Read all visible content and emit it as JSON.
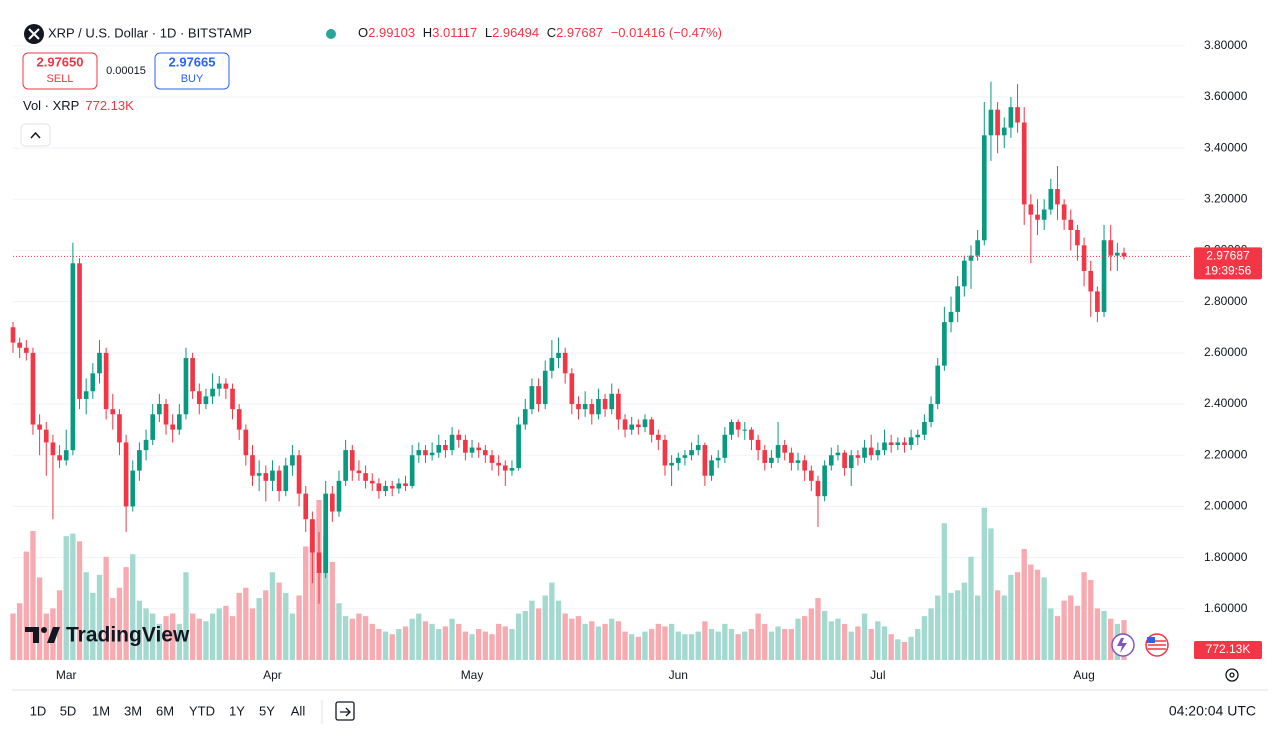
{
  "header": {
    "symbol": "XRP / U.S. Dollar · 1D · BITSTAMP",
    "o_label": "O",
    "h_label": "H",
    "l_label": "L",
    "c_label": "C",
    "change": "−0.01416 (−0.47%)",
    "sell_price": "2.97650",
    "sell": "SELL",
    "spread": "0.00015",
    "buy_price": "2.97665",
    "buy": "BUY",
    "vol_label": "Vol · XRP"
  },
  "chart_data": {
    "type": "candlestick",
    "up_color": "#089981",
    "down_color": "#f23645",
    "volume_up_color": "#a3d9cf",
    "volume_down_color": "#f7aab0",
    "grid": true,
    "ylim": [
      1.4,
      3.92
    ],
    "yticks": [
      {
        "value": 1.6,
        "label": "1.60000"
      },
      {
        "value": 1.8,
        "label": "1.80000"
      },
      {
        "value": 2.0,
        "label": "2.00000"
      },
      {
        "value": 2.2,
        "label": "2.20000"
      },
      {
        "value": 2.4,
        "label": "2.40000"
      },
      {
        "value": 2.6,
        "label": "2.60000"
      },
      {
        "value": 2.8,
        "label": "2.80000"
      },
      {
        "value": 3.0,
        "label": "3.00000"
      },
      {
        "value": 3.2,
        "label": "3.20000"
      },
      {
        "value": 3.4,
        "label": "3.40000"
      },
      {
        "value": 3.6,
        "label": "3.60000"
      },
      {
        "value": 3.8,
        "label": "3.80000"
      }
    ],
    "categories": [
      null,
      null,
      null,
      null,
      null,
      null,
      null,
      null,
      "Mar",
      null,
      null,
      null,
      null,
      null,
      null,
      null,
      null,
      null,
      null,
      null,
      null,
      null,
      null,
      null,
      null,
      null,
      null,
      null,
      null,
      null,
      null,
      null,
      null,
      null,
      null,
      null,
      null,
      null,
      null,
      "Apr",
      null,
      null,
      null,
      null,
      null,
      null,
      null,
      null,
      null,
      null,
      null,
      null,
      null,
      null,
      null,
      null,
      null,
      null,
      null,
      null,
      null,
      null,
      null,
      null,
      null,
      null,
      null,
      null,
      null,
      "May",
      null,
      null,
      null,
      null,
      null,
      null,
      null,
      null,
      null,
      null,
      null,
      null,
      null,
      null,
      null,
      null,
      null,
      null,
      null,
      null,
      null,
      null,
      null,
      null,
      null,
      null,
      null,
      null,
      null,
      null,
      "Jun",
      null,
      null,
      null,
      null,
      null,
      null,
      null,
      null,
      null,
      null,
      null,
      null,
      null,
      null,
      null,
      null,
      null,
      null,
      null,
      null,
      null,
      null,
      null,
      null,
      null,
      null,
      null,
      null,
      null,
      "Jul",
      null,
      null,
      null,
      null,
      null,
      null,
      null,
      null,
      null,
      null,
      null,
      null,
      null,
      null,
      null,
      null,
      null,
      null,
      null,
      null,
      null,
      null,
      null,
      null,
      null,
      null,
      null,
      null,
      null,
      null,
      "Aug",
      null,
      null,
      null,
      null,
      null,
      null
    ],
    "candles": [
      [
        2.7,
        2.72,
        2.6,
        2.64
      ],
      [
        2.64,
        2.66,
        2.58,
        2.62
      ],
      [
        2.62,
        2.65,
        2.57,
        2.6
      ],
      [
        2.6,
        2.62,
        2.28,
        2.32
      ],
      [
        2.32,
        2.36,
        2.2,
        2.3
      ],
      [
        2.3,
        2.33,
        2.12,
        2.25
      ],
      [
        2.25,
        2.28,
        1.95,
        2.2
      ],
      [
        2.2,
        2.24,
        2.15,
        2.18
      ],
      [
        2.18,
        2.3,
        2.16,
        2.22
      ],
      [
        2.22,
        3.03,
        2.2,
        2.95
      ],
      [
        2.95,
        2.97,
        2.38,
        2.42
      ],
      [
        2.42,
        2.5,
        2.36,
        2.45
      ],
      [
        2.45,
        2.56,
        2.42,
        2.52
      ],
      [
        2.52,
        2.65,
        2.48,
        2.6
      ],
      [
        2.6,
        2.62,
        2.34,
        2.38
      ],
      [
        2.38,
        2.44,
        2.3,
        2.36
      ],
      [
        2.36,
        2.38,
        2.2,
        2.25
      ],
      [
        2.25,
        2.28,
        1.9,
        2.0
      ],
      [
        2.0,
        2.18,
        1.98,
        2.14
      ],
      [
        2.14,
        2.25,
        2.1,
        2.22
      ],
      [
        2.22,
        2.3,
        2.18,
        2.26
      ],
      [
        2.26,
        2.4,
        2.24,
        2.36
      ],
      [
        2.36,
        2.44,
        2.33,
        2.4
      ],
      [
        2.4,
        2.42,
        2.28,
        2.32
      ],
      [
        2.32,
        2.36,
        2.25,
        2.3
      ],
      [
        2.3,
        2.4,
        2.28,
        2.36
      ],
      [
        2.36,
        2.62,
        2.34,
        2.58
      ],
      [
        2.58,
        2.6,
        2.42,
        2.45
      ],
      [
        2.45,
        2.48,
        2.36,
        2.4
      ],
      [
        2.4,
        2.46,
        2.38,
        2.43
      ],
      [
        2.43,
        2.52,
        2.4,
        2.46
      ],
      [
        2.46,
        2.51,
        2.43,
        2.48
      ],
      [
        2.48,
        2.5,
        2.42,
        2.46
      ],
      [
        2.46,
        2.48,
        2.34,
        2.38
      ],
      [
        2.38,
        2.4,
        2.26,
        2.3
      ],
      [
        2.3,
        2.32,
        2.16,
        2.2
      ],
      [
        2.2,
        2.24,
        2.08,
        2.12
      ],
      [
        2.12,
        2.18,
        2.06,
        2.13
      ],
      [
        2.13,
        2.16,
        2.02,
        2.1
      ],
      [
        2.1,
        2.18,
        2.06,
        2.14
      ],
      [
        2.14,
        2.16,
        2.02,
        2.06
      ],
      [
        2.06,
        2.19,
        2.04,
        2.16
      ],
      [
        2.16,
        2.24,
        2.12,
        2.2
      ],
      [
        2.2,
        2.22,
        2.0,
        2.05
      ],
      [
        2.05,
        2.08,
        1.9,
        1.95
      ],
      [
        1.95,
        1.98,
        1.7,
        1.82
      ],
      [
        1.82,
        1.9,
        1.62,
        1.74
      ],
      [
        1.74,
        2.1,
        1.72,
        2.05
      ],
      [
        2.05,
        2.08,
        1.94,
        1.98
      ],
      [
        1.98,
        2.14,
        1.96,
        2.1
      ],
      [
        2.1,
        2.26,
        2.08,
        2.22
      ],
      [
        2.22,
        2.24,
        2.1,
        2.14
      ],
      [
        2.14,
        2.18,
        2.1,
        2.13
      ],
      [
        2.13,
        2.16,
        2.07,
        2.1
      ],
      [
        2.1,
        2.13,
        2.06,
        2.09
      ],
      [
        2.09,
        2.11,
        2.03,
        2.06
      ],
      [
        2.06,
        2.1,
        2.04,
        2.08
      ],
      [
        2.08,
        2.1,
        2.04,
        2.07
      ],
      [
        2.07,
        2.11,
        2.05,
        2.09
      ],
      [
        2.09,
        2.12,
        2.06,
        2.08
      ],
      [
        2.08,
        2.24,
        2.07,
        2.2
      ],
      [
        2.2,
        2.25,
        2.17,
        2.22
      ],
      [
        2.22,
        2.24,
        2.17,
        2.2
      ],
      [
        2.2,
        2.25,
        2.18,
        2.21
      ],
      [
        2.21,
        2.28,
        2.19,
        2.24
      ],
      [
        2.24,
        2.26,
        2.19,
        2.22
      ],
      [
        2.22,
        2.31,
        2.2,
        2.28
      ],
      [
        2.28,
        2.3,
        2.23,
        2.26
      ],
      [
        2.26,
        2.28,
        2.18,
        2.21
      ],
      [
        2.21,
        2.26,
        2.19,
        2.23
      ],
      [
        2.23,
        2.25,
        2.19,
        2.22
      ],
      [
        2.22,
        2.24,
        2.17,
        2.2
      ],
      [
        2.2,
        2.22,
        2.14,
        2.17
      ],
      [
        2.17,
        2.2,
        2.12,
        2.16
      ],
      [
        2.16,
        2.18,
        2.08,
        2.14
      ],
      [
        2.14,
        2.18,
        2.12,
        2.15
      ],
      [
        2.15,
        2.35,
        2.14,
        2.32
      ],
      [
        2.32,
        2.42,
        2.3,
        2.38
      ],
      [
        2.38,
        2.5,
        2.36,
        2.47
      ],
      [
        2.47,
        2.5,
        2.37,
        2.4
      ],
      [
        2.4,
        2.57,
        2.38,
        2.53
      ],
      [
        2.53,
        2.65,
        2.5,
        2.58
      ],
      [
        2.58,
        2.66,
        2.54,
        2.6
      ],
      [
        2.6,
        2.62,
        2.48,
        2.52
      ],
      [
        2.52,
        2.54,
        2.36,
        2.4
      ],
      [
        2.4,
        2.43,
        2.34,
        2.38
      ],
      [
        2.38,
        2.45,
        2.35,
        2.4
      ],
      [
        2.4,
        2.42,
        2.32,
        2.36
      ],
      [
        2.36,
        2.46,
        2.34,
        2.42
      ],
      [
        2.42,
        2.44,
        2.35,
        2.38
      ],
      [
        2.38,
        2.48,
        2.36,
        2.44
      ],
      [
        2.44,
        2.46,
        2.3,
        2.34
      ],
      [
        2.34,
        2.36,
        2.27,
        2.3
      ],
      [
        2.3,
        2.35,
        2.28,
        2.32
      ],
      [
        2.32,
        2.34,
        2.28,
        2.31
      ],
      [
        2.31,
        2.36,
        2.29,
        2.34
      ],
      [
        2.34,
        2.35,
        2.25,
        2.28
      ],
      [
        2.28,
        2.3,
        2.22,
        2.26
      ],
      [
        2.26,
        2.28,
        2.12,
        2.16
      ],
      [
        2.16,
        2.2,
        2.08,
        2.17
      ],
      [
        2.17,
        2.21,
        2.14,
        2.19
      ],
      [
        2.19,
        2.22,
        2.16,
        2.2
      ],
      [
        2.2,
        2.25,
        2.18,
        2.22
      ],
      [
        2.22,
        2.28,
        2.2,
        2.24
      ],
      [
        2.24,
        2.25,
        2.08,
        2.12
      ],
      [
        2.12,
        2.2,
        2.1,
        2.18
      ],
      [
        2.18,
        2.22,
        2.15,
        2.19
      ],
      [
        2.19,
        2.31,
        2.17,
        2.28
      ],
      [
        2.28,
        2.34,
        2.26,
        2.33
      ],
      [
        2.33,
        2.34,
        2.27,
        2.3
      ],
      [
        2.3,
        2.33,
        2.26,
        2.3
      ],
      [
        2.3,
        2.31,
        2.22,
        2.26
      ],
      [
        2.26,
        2.28,
        2.18,
        2.22
      ],
      [
        2.22,
        2.24,
        2.14,
        2.17
      ],
      [
        2.17,
        2.22,
        2.15,
        2.19
      ],
      [
        2.19,
        2.33,
        2.17,
        2.24
      ],
      [
        2.24,
        2.26,
        2.18,
        2.21
      ],
      [
        2.21,
        2.23,
        2.14,
        2.17
      ],
      [
        2.17,
        2.21,
        2.14,
        2.18
      ],
      [
        2.18,
        2.2,
        2.1,
        2.14
      ],
      [
        2.14,
        2.16,
        2.06,
        2.1
      ],
      [
        2.1,
        2.12,
        1.92,
        2.04
      ],
      [
        2.04,
        2.18,
        2.02,
        2.16
      ],
      [
        2.16,
        2.23,
        2.14,
        2.2
      ],
      [
        2.2,
        2.24,
        2.18,
        2.21
      ],
      [
        2.21,
        2.22,
        2.12,
        2.15
      ],
      [
        2.15,
        2.22,
        2.08,
        2.2
      ],
      [
        2.2,
        2.22,
        2.16,
        2.19
      ],
      [
        2.19,
        2.26,
        2.17,
        2.23
      ],
      [
        2.23,
        2.28,
        2.18,
        2.2
      ],
      [
        2.2,
        2.25,
        2.18,
        2.22
      ],
      [
        2.22,
        2.3,
        2.2,
        2.25
      ],
      [
        2.25,
        2.28,
        2.21,
        2.24
      ],
      [
        2.24,
        2.27,
        2.22,
        2.25
      ],
      [
        2.25,
        2.27,
        2.21,
        2.24
      ],
      [
        2.24,
        2.3,
        2.22,
        2.27
      ],
      [
        2.27,
        2.3,
        2.24,
        2.28
      ],
      [
        2.28,
        2.36,
        2.26,
        2.33
      ],
      [
        2.33,
        2.43,
        2.31,
        2.4
      ],
      [
        2.4,
        2.58,
        2.38,
        2.55
      ],
      [
        2.55,
        2.78,
        2.53,
        2.72
      ],
      [
        2.72,
        2.82,
        2.68,
        2.76
      ],
      [
        2.76,
        2.9,
        2.72,
        2.86
      ],
      [
        2.86,
        2.98,
        2.82,
        2.96
      ],
      [
        2.96,
        3.02,
        2.85,
        2.98
      ],
      [
        2.98,
        3.08,
        2.96,
        3.04
      ],
      [
        3.04,
        3.58,
        3.02,
        3.45
      ],
      [
        3.45,
        3.66,
        3.35,
        3.55
      ],
      [
        3.55,
        3.58,
        3.38,
        3.45
      ],
      [
        3.45,
        3.52,
        3.4,
        3.48
      ],
      [
        3.48,
        3.6,
        3.44,
        3.56
      ],
      [
        3.56,
        3.65,
        3.46,
        3.5
      ],
      [
        3.5,
        3.56,
        3.1,
        3.18
      ],
      [
        3.18,
        3.22,
        2.95,
        3.14
      ],
      [
        3.14,
        3.2,
        3.06,
        3.12
      ],
      [
        3.12,
        3.2,
        3.08,
        3.16
      ],
      [
        3.16,
        3.28,
        3.14,
        3.24
      ],
      [
        3.24,
        3.33,
        3.12,
        3.18
      ],
      [
        3.18,
        3.2,
        3.08,
        3.12
      ],
      [
        3.12,
        3.16,
        3.0,
        3.08
      ],
      [
        3.08,
        3.1,
        2.96,
        3.02
      ],
      [
        3.02,
        3.05,
        2.86,
        2.92
      ],
      [
        2.92,
        2.96,
        2.74,
        2.84
      ],
      [
        2.84,
        2.86,
        2.72,
        2.76
      ],
      [
        2.76,
        3.1,
        2.74,
        3.04
      ],
      [
        3.04,
        3.1,
        2.92,
        2.98
      ],
      [
        2.98,
        3.03,
        2.92,
        2.99103
      ],
      [
        2.99103,
        3.01117,
        2.96494,
        2.97687
      ]
    ],
    "volume": [
      900,
      1100,
      2100,
      2500,
      1600,
      900,
      1000,
      1350,
      2400,
      2450,
      2300,
      1700,
      1300,
      1650,
      2000,
      1200,
      1400,
      1800,
      2050,
      1150,
      1000,
      900,
      700,
      850,
      900,
      700,
      1700,
      900,
      800,
      750,
      900,
      1000,
      1050,
      850,
      1300,
      1400,
      1000,
      1200,
      1350,
      1700,
      1500,
      1300,
      900,
      1250,
      2200,
      2700,
      3100,
      2400,
      1900,
      1100,
      850,
      800,
      900,
      850,
      700,
      600,
      550,
      500,
      600,
      650,
      800,
      900,
      750,
      700,
      600,
      650,
      800,
      700,
      550,
      500,
      600,
      550,
      500,
      700,
      650,
      600,
      900,
      950,
      1150,
      1000,
      1250,
      1500,
      1150,
      900,
      800,
      850,
      700,
      750,
      650,
      700,
      800,
      750,
      550,
      500,
      450,
      550,
      600,
      700,
      650,
      700,
      550,
      500,
      500,
      550,
      750,
      600,
      550,
      700,
      600,
      500,
      550,
      600,
      900,
      700,
      550,
      650,
      600,
      600,
      800,
      850,
      1000,
      1200,
      950,
      750,
      800,
      700,
      550,
      650,
      900,
      600,
      750,
      650,
      500,
      400,
      350,
      450,
      600,
      850,
      1000,
      1250,
      2650,
      1300,
      1350,
      1500,
      2000,
      1250,
      2950,
      2550,
      1350,
      1250,
      1650,
      1700,
      2150,
      1850,
      1750,
      1600,
      1000,
      850,
      1150,
      1250,
      1050,
      1700,
      1550,
      1000,
      950,
      800,
      700,
      772.13
    ],
    "last_volume_label": "772.13K",
    "countdown": "19:39:56",
    "logo": "TradingView"
  },
  "toolbar": {
    "ranges": [
      "1D",
      "5D",
      "1M",
      "3M",
      "6M",
      "YTD",
      "1Y",
      "5Y",
      "All"
    ],
    "time": "04:20:04 UTC"
  }
}
